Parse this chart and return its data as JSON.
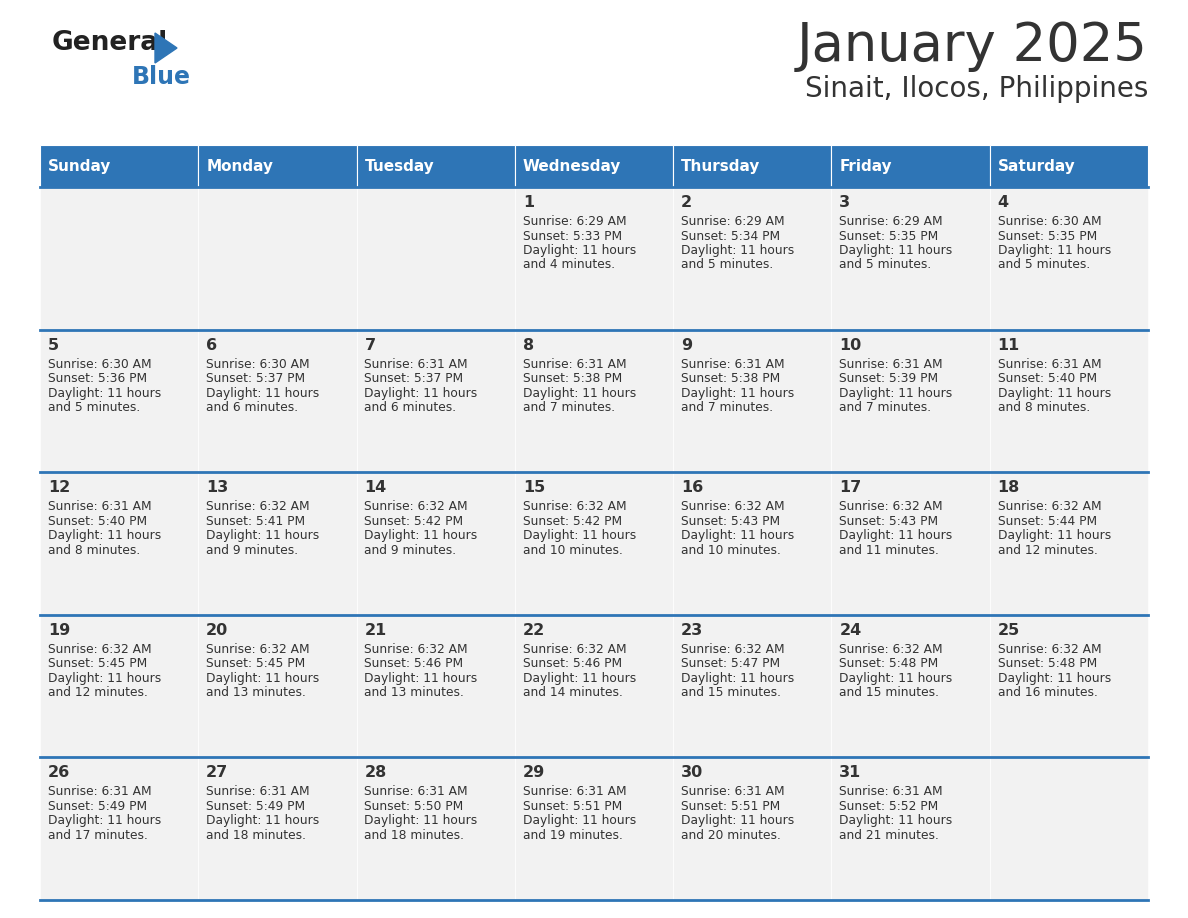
{
  "title": "January 2025",
  "subtitle": "Sinait, Ilocos, Philippines",
  "days_of_week": [
    "Sunday",
    "Monday",
    "Tuesday",
    "Wednesday",
    "Thursday",
    "Friday",
    "Saturday"
  ],
  "header_bg": "#2E75B6",
  "header_text": "#FFFFFF",
  "cell_bg_light": "#F2F2F2",
  "cell_text": "#333333",
  "divider_color": "#2E75B6",
  "title_color": "#333333",
  "logo_general_color": "#222222",
  "logo_blue_color": "#2E75B6",
  "calendar_data": [
    [
      null,
      null,
      null,
      {
        "day": 1,
        "sunrise": "6:29 AM",
        "sunset": "5:33 PM",
        "daylight": "11 hours and 4 minutes."
      },
      {
        "day": 2,
        "sunrise": "6:29 AM",
        "sunset": "5:34 PM",
        "daylight": "11 hours and 5 minutes."
      },
      {
        "day": 3,
        "sunrise": "6:29 AM",
        "sunset": "5:35 PM",
        "daylight": "11 hours and 5 minutes."
      },
      {
        "day": 4,
        "sunrise": "6:30 AM",
        "sunset": "5:35 PM",
        "daylight": "11 hours and 5 minutes."
      }
    ],
    [
      {
        "day": 5,
        "sunrise": "6:30 AM",
        "sunset": "5:36 PM",
        "daylight": "11 hours and 5 minutes."
      },
      {
        "day": 6,
        "sunrise": "6:30 AM",
        "sunset": "5:37 PM",
        "daylight": "11 hours and 6 minutes."
      },
      {
        "day": 7,
        "sunrise": "6:31 AM",
        "sunset": "5:37 PM",
        "daylight": "11 hours and 6 minutes."
      },
      {
        "day": 8,
        "sunrise": "6:31 AM",
        "sunset": "5:38 PM",
        "daylight": "11 hours and 7 minutes."
      },
      {
        "day": 9,
        "sunrise": "6:31 AM",
        "sunset": "5:38 PM",
        "daylight": "11 hours and 7 minutes."
      },
      {
        "day": 10,
        "sunrise": "6:31 AM",
        "sunset": "5:39 PM",
        "daylight": "11 hours and 7 minutes."
      },
      {
        "day": 11,
        "sunrise": "6:31 AM",
        "sunset": "5:40 PM",
        "daylight": "11 hours and 8 minutes."
      }
    ],
    [
      {
        "day": 12,
        "sunrise": "6:31 AM",
        "sunset": "5:40 PM",
        "daylight": "11 hours and 8 minutes."
      },
      {
        "day": 13,
        "sunrise": "6:32 AM",
        "sunset": "5:41 PM",
        "daylight": "11 hours and 9 minutes."
      },
      {
        "day": 14,
        "sunrise": "6:32 AM",
        "sunset": "5:42 PM",
        "daylight": "11 hours and 9 minutes."
      },
      {
        "day": 15,
        "sunrise": "6:32 AM",
        "sunset": "5:42 PM",
        "daylight": "11 hours and 10 minutes."
      },
      {
        "day": 16,
        "sunrise": "6:32 AM",
        "sunset": "5:43 PM",
        "daylight": "11 hours and 10 minutes."
      },
      {
        "day": 17,
        "sunrise": "6:32 AM",
        "sunset": "5:43 PM",
        "daylight": "11 hours and 11 minutes."
      },
      {
        "day": 18,
        "sunrise": "6:32 AM",
        "sunset": "5:44 PM",
        "daylight": "11 hours and 12 minutes."
      }
    ],
    [
      {
        "day": 19,
        "sunrise": "6:32 AM",
        "sunset": "5:45 PM",
        "daylight": "11 hours and 12 minutes."
      },
      {
        "day": 20,
        "sunrise": "6:32 AM",
        "sunset": "5:45 PM",
        "daylight": "11 hours and 13 minutes."
      },
      {
        "day": 21,
        "sunrise": "6:32 AM",
        "sunset": "5:46 PM",
        "daylight": "11 hours and 13 minutes."
      },
      {
        "day": 22,
        "sunrise": "6:32 AM",
        "sunset": "5:46 PM",
        "daylight": "11 hours and 14 minutes."
      },
      {
        "day": 23,
        "sunrise": "6:32 AM",
        "sunset": "5:47 PM",
        "daylight": "11 hours and 15 minutes."
      },
      {
        "day": 24,
        "sunrise": "6:32 AM",
        "sunset": "5:48 PM",
        "daylight": "11 hours and 15 minutes."
      },
      {
        "day": 25,
        "sunrise": "6:32 AM",
        "sunset": "5:48 PM",
        "daylight": "11 hours and 16 minutes."
      }
    ],
    [
      {
        "day": 26,
        "sunrise": "6:31 AM",
        "sunset": "5:49 PM",
        "daylight": "11 hours and 17 minutes."
      },
      {
        "day": 27,
        "sunrise": "6:31 AM",
        "sunset": "5:49 PM",
        "daylight": "11 hours and 18 minutes."
      },
      {
        "day": 28,
        "sunrise": "6:31 AM",
        "sunset": "5:50 PM",
        "daylight": "11 hours and 18 minutes."
      },
      {
        "day": 29,
        "sunrise": "6:31 AM",
        "sunset": "5:51 PM",
        "daylight": "11 hours and 19 minutes."
      },
      {
        "day": 30,
        "sunrise": "6:31 AM",
        "sunset": "5:51 PM",
        "daylight": "11 hours and 20 minutes."
      },
      {
        "day": 31,
        "sunrise": "6:31 AM",
        "sunset": "5:52 PM",
        "daylight": "11 hours and 21 minutes."
      },
      null
    ]
  ]
}
